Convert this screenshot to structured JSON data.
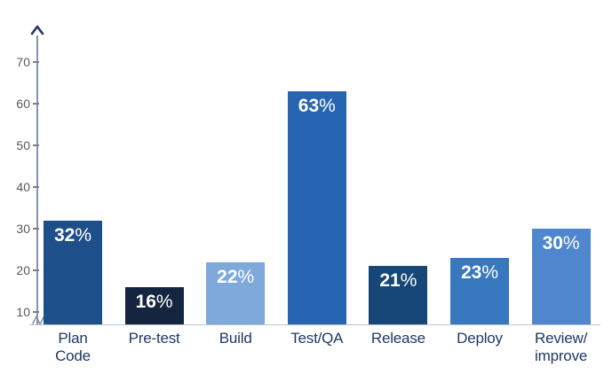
{
  "chart_data": {
    "type": "bar",
    "title": "",
    "categories": [
      "Plan Code",
      "Pre-test",
      "Build",
      "Test/QA",
      "Release",
      "Deploy",
      "Review/improve"
    ],
    "category_display": [
      "Plan\nCode",
      "Pre-test",
      "Build",
      "Test/QA",
      "Release",
      "Deploy",
      "Review/\nimprove"
    ],
    "values": [
      32,
      16,
      22,
      63,
      21,
      23,
      30
    ],
    "value_labels": [
      "32%",
      "16%",
      "22%",
      "63%",
      "21%",
      "23%",
      "30%"
    ],
    "unit": "%",
    "xlabel": "",
    "ylabel": "",
    "y_ticks": [
      10,
      20,
      30,
      40,
      50,
      60,
      70
    ],
    "ylim": [
      7,
      77
    ],
    "axis_break_at_bottom": true,
    "grid": false,
    "legend": "none",
    "bar_colors": [
      "#1D4F8A",
      "#16253F",
      "#7FA9DB",
      "#2765B2",
      "#164778",
      "#3778BE",
      "#4F86CE"
    ],
    "value_label_color": "#FFFFFF",
    "category_label_color": "#1F3864",
    "tick_label_color": "#595959",
    "tick_mark_color": "#7F7F7F",
    "axis_line_color": "#8495AB",
    "arrow_color": "#1F3864",
    "baseline_color": "#BDC4CE"
  }
}
